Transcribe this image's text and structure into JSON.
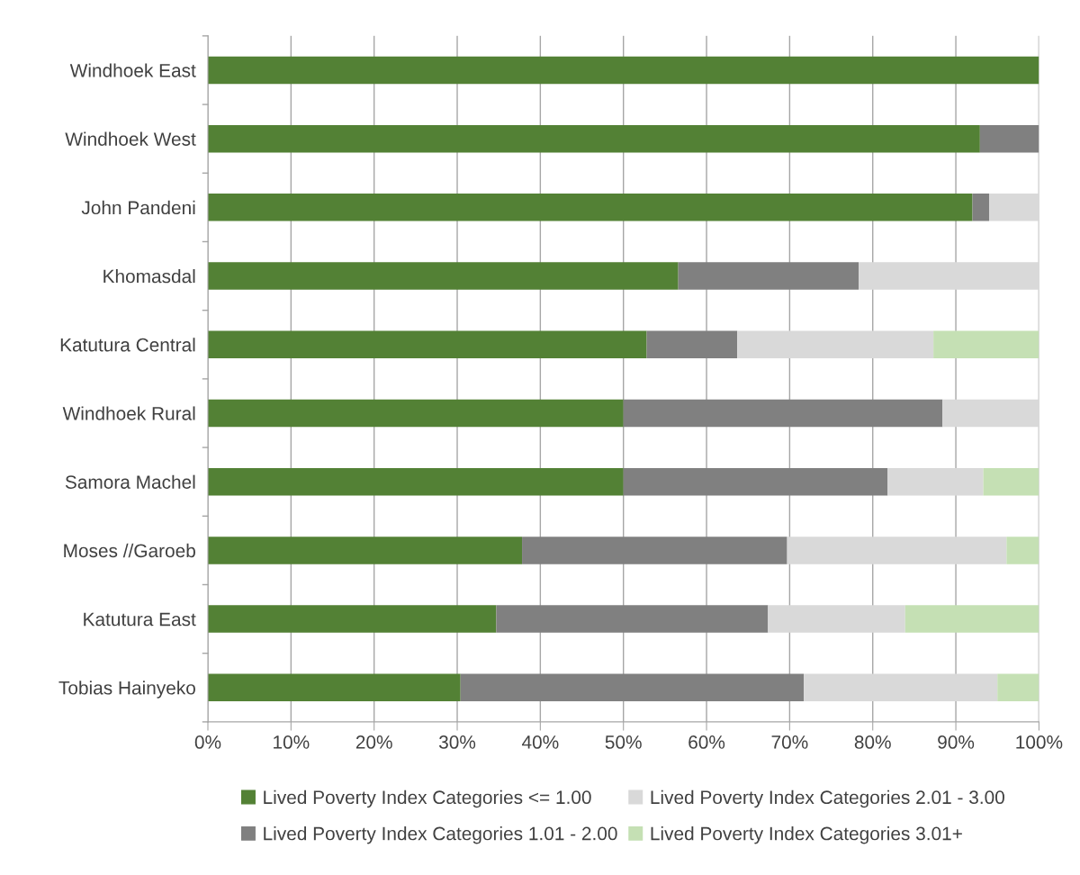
{
  "chart_data": {
    "type": "bar",
    "orientation": "horizontal",
    "stacked": true,
    "categories": [
      "Windhoek East",
      "Windhoek West",
      "John Pandeni",
      "Khomasdal",
      "Katutura Central",
      "Windhoek Rural",
      "Samora Machel",
      "Moses //Garoeb",
      "Katutura East",
      "Tobias Hainyeko"
    ],
    "series": [
      {
        "name": "Lived Poverty Index Categories <= 1.00",
        "color": "#538135",
        "values": [
          100,
          92.9,
          92.0,
          56.6,
          52.8,
          50.0,
          50.0,
          37.8,
          34.7,
          30.4
        ]
      },
      {
        "name": "Lived Poverty Index Categories 1.01 - 2.00",
        "color": "#808080",
        "values": [
          0,
          7.1,
          2.0,
          21.7,
          10.9,
          38.4,
          31.8,
          31.9,
          32.7,
          41.3
        ]
      },
      {
        "name": "Lived Poverty Index Categories 2.01 - 3.00",
        "color": "#d9d9d9",
        "values": [
          0,
          0,
          6.0,
          21.7,
          23.6,
          11.6,
          11.5,
          26.4,
          16.5,
          23.3
        ]
      },
      {
        "name": "Lived Poverty Index Categories 3.01+",
        "color": "#c5e0b4",
        "values": [
          0,
          0,
          0,
          0,
          12.7,
          0,
          6.7,
          3.9,
          16.1,
          5.0
        ]
      }
    ],
    "xlim": [
      0,
      100
    ],
    "xticks": [
      {
        "value": 0,
        "label": "0%"
      },
      {
        "value": 10,
        "label": "10%"
      },
      {
        "value": 20,
        "label": "20%"
      },
      {
        "value": 30,
        "label": "30%"
      },
      {
        "value": 40,
        "label": "40%"
      },
      {
        "value": 50,
        "label": "50%"
      },
      {
        "value": 60,
        "label": "60%"
      },
      {
        "value": 70,
        "label": "70%"
      },
      {
        "value": 80,
        "label": "80%"
      },
      {
        "value": 90,
        "label": "90%"
      },
      {
        "value": 100,
        "label": "100%"
      }
    ],
    "grid": "x",
    "legend": "bottom"
  }
}
